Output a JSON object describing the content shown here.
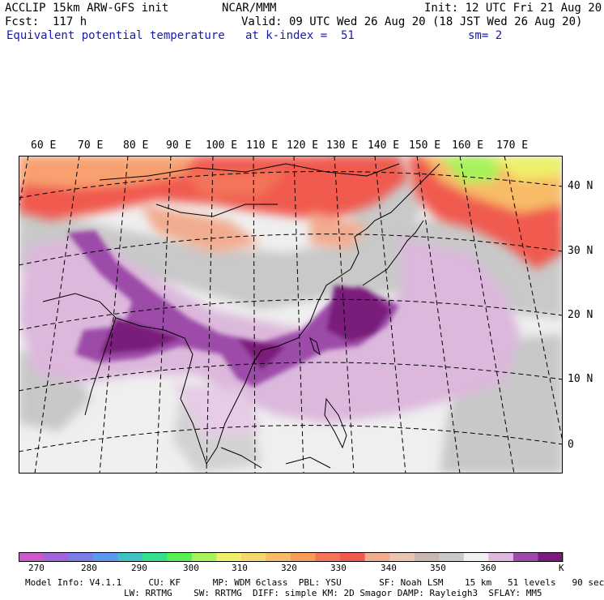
{
  "header": {
    "line1_left": "ACCLIP 15km ARW-GFS init",
    "line1_center": "NCAR/MMM",
    "line1_right": "Init: 12 UTC Fri 21 Aug 20",
    "line2_left": "Fcst:  117 h",
    "line2_right": "Valid: 09 UTC Wed 26 Aug 20 (18 JST Wed 26 Aug 20)",
    "line3_left": "Equivalent potential temperature",
    "line3_center": "at k-index =  51",
    "line3_right": "sm= 2"
  },
  "map": {
    "lon_labels": [
      "60 E",
      "70 E",
      "80 E",
      "90 E",
      "100 E",
      "110 E",
      "120 E",
      "130 E",
      "140 E",
      "150 E",
      "160 E",
      "170 E"
    ],
    "lat_labels": [
      "40 N",
      "30 N",
      "20 N",
      "10 N",
      "0"
    ]
  },
  "colorbar": {
    "unit": "K",
    "tick_labels": [
      "270",
      "280",
      "290",
      "300",
      "310",
      "320",
      "330",
      "340",
      "350",
      "360"
    ],
    "colors": [
      "#c85bc8",
      "#a066d8",
      "#7b7ce6",
      "#5c98ee",
      "#40c2c2",
      "#35e090",
      "#56ef56",
      "#a8f25a",
      "#eef06a",
      "#f5d86c",
      "#f8bc68",
      "#f89a58",
      "#f4745a",
      "#f05a50",
      "#f2ac90",
      "#e8c6b0",
      "#c8b8b0",
      "#c9c9c9",
      "#efefef",
      "#dcb8dc",
      "#9c4ba8",
      "#7a1a7a"
    ]
  },
  "footer": {
    "line1": "Model Info: V4.1.1     CU: KF      MP: WDM 6class  PBL: YSU       SF: Noah LSM    15 km   51 levels   90 sec",
    "line2": "LW: RRTMG    SW: RRTMG  DIFF: simple KM: 2D Smagor DAMP: Rayleigh3  SFLAY: MM5"
  }
}
